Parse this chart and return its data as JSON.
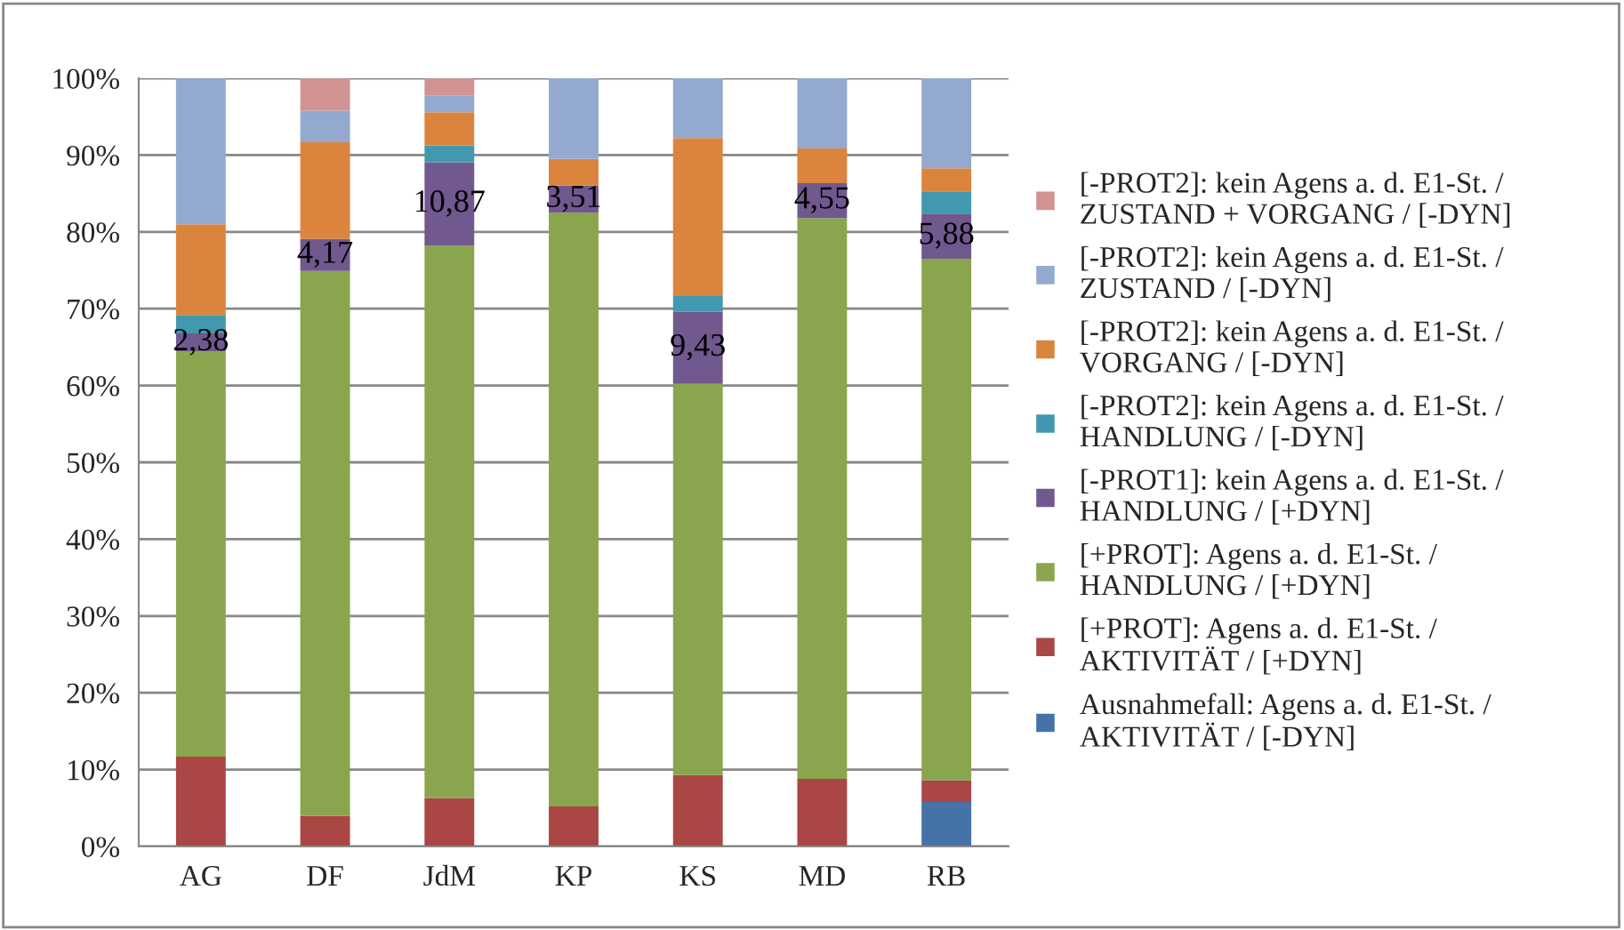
{
  "chart_data": {
    "type": "bar",
    "stacked": true,
    "categories": [
      "AG",
      "DF",
      "JdM",
      "KP",
      "KS",
      "MD",
      "RB"
    ],
    "series": [
      {
        "name": "Ausnahmefall: Agens a. d. E1-St. /\nAKTIVITÄT / [-DYN]",
        "color": "#4572a7",
        "values": [
          0,
          0,
          0,
          0,
          0,
          0,
          5.8
        ]
      },
      {
        "name": "[+PROT]: Agens a. d. E1-St. /\nAKTIVITÄT / [+DYN]",
        "color": "#aa4643",
        "values": [
          11.7,
          4.0,
          6.3,
          5.2,
          9.3,
          8.8,
          2.8
        ]
      },
      {
        "name": "[+PROT]: Agens a. d. E1-St. /\nHANDLUNG / [+DYN]",
        "color": "#89a54e",
        "values": [
          52.7,
          70.9,
          71.9,
          77.3,
          50.9,
          73.0,
          67.9
        ]
      },
      {
        "name": "[-PROT1]: kein Agens a. d. E1-St. /\nHANDLUNG / [+DYN]",
        "color": "#71588f",
        "values": [
          2.38,
          4.17,
          10.87,
          3.51,
          9.43,
          4.55,
          5.88
        ],
        "value_labels": [
          "2,38",
          "4,17",
          "10,87",
          "3,51",
          "9,43",
          "4,55",
          "5,88"
        ]
      },
      {
        "name": "[-PROT2]: kein Agens a. d. E1-St. /\nHANDLUNG / [-DYN]",
        "color": "#4198af",
        "values": [
          2.4,
          0,
          2.2,
          0,
          2.0,
          0,
          2.9
        ]
      },
      {
        "name": "[-PROT2]: kein Agens a. d. E1-St. /\nVORGANG / [-DYN]",
        "color": "#db843d",
        "values": [
          11.8,
          12.6,
          4.3,
          3.5,
          20.6,
          4.5,
          3.0
        ]
      },
      {
        "name": "[-PROT2]: kein Agens a. d. E1-St. /\nZUSTAND / [-DYN]",
        "color": "#93a9cf",
        "values": [
          19.0,
          4.1,
          2.2,
          10.5,
          7.8,
          9.2,
          11.8
        ]
      },
      {
        "name": "[-PROT2]: kein Agens a. d. E1-St. /\nZUSTAND + VORGANG / [-DYN]",
        "color": "#d19392",
        "values": [
          0,
          4.2,
          2.2,
          0,
          0,
          0,
          0
        ]
      }
    ],
    "ylim": [
      0,
      100
    ],
    "yticks": [
      {
        "value": 0,
        "label": "0%"
      },
      {
        "value": 10,
        "label": "10%"
      },
      {
        "value": 20,
        "label": "20%"
      },
      {
        "value": 30,
        "label": "30%"
      },
      {
        "value": 40,
        "label": "40%"
      },
      {
        "value": 50,
        "label": "50%"
      },
      {
        "value": 60,
        "label": "60%"
      },
      {
        "value": 70,
        "label": "70%"
      },
      {
        "value": 80,
        "label": "80%"
      },
      {
        "value": 90,
        "label": "90%"
      },
      {
        "value": 100,
        "label": "100%"
      }
    ],
    "grid": "y",
    "legend": "right"
  }
}
